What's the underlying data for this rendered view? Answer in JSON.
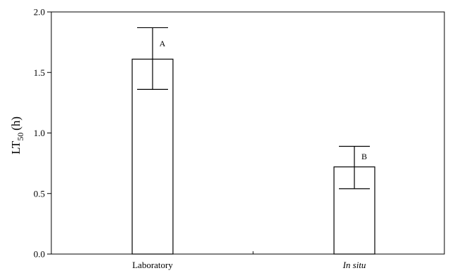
{
  "chart_data": {
    "type": "bar",
    "categories": [
      "Laboratory",
      "In situ"
    ],
    "values": [
      1.61,
      0.72
    ],
    "error_high": [
      1.87,
      0.89
    ],
    "error_low": [
      1.36,
      0.54
    ],
    "annotations": [
      "A",
      "B"
    ],
    "ylabel_main": "LT",
    "ylabel_sub": "50",
    "ylabel_unit": "(h)",
    "ylim": [
      0.0,
      2.0
    ],
    "yticks": [
      0.0,
      0.5,
      1.0,
      1.5,
      2.0
    ],
    "ytick_labels": [
      "0.0",
      "0.5",
      "1.0",
      "1.5",
      "2.0"
    ],
    "grid": false,
    "category_italic": [
      false,
      true
    ],
    "bar_fill": "#ffffff",
    "bar_stroke": "#000000"
  }
}
